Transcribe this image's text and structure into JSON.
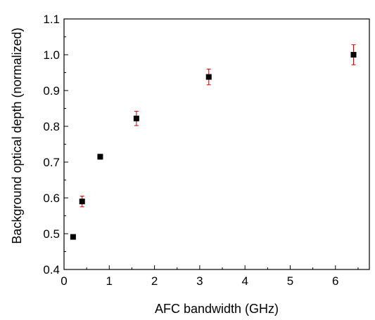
{
  "chart_data": {
    "type": "scatter",
    "title": "",
    "xlabel": "AFC bandwidth (GHz)",
    "ylabel": "Background optical depth (normalized)",
    "xlim": [
      0,
      6.75
    ],
    "ylim": [
      0.4,
      1.1
    ],
    "x_ticks": [
      0,
      1,
      2,
      3,
      4,
      5,
      6
    ],
    "y_ticks": [
      0.4,
      0.5,
      0.6,
      0.7,
      0.8,
      0.9,
      1.0,
      1.1
    ],
    "x_tick_labels": [
      "0",
      "1",
      "2",
      "3",
      "4",
      "5",
      "6"
    ],
    "y_tick_labels": [
      "0.4",
      "0.5",
      "0.6",
      "0.7",
      "0.8",
      "0.9",
      "1.0",
      "1.1"
    ],
    "grid": false,
    "legend": false,
    "marker": "square",
    "marker_color": "#000000",
    "errorbar_color": "#cc0000",
    "points": [
      {
        "x": 0.2,
        "y": 0.491,
        "err": 0.004
      },
      {
        "x": 0.4,
        "y": 0.59,
        "err": 0.015
      },
      {
        "x": 0.8,
        "y": 0.715,
        "err": 0.007
      },
      {
        "x": 1.6,
        "y": 0.822,
        "err": 0.02
      },
      {
        "x": 3.2,
        "y": 0.938,
        "err": 0.022
      },
      {
        "x": 6.4,
        "y": 1.0,
        "err": 0.028
      }
    ]
  }
}
